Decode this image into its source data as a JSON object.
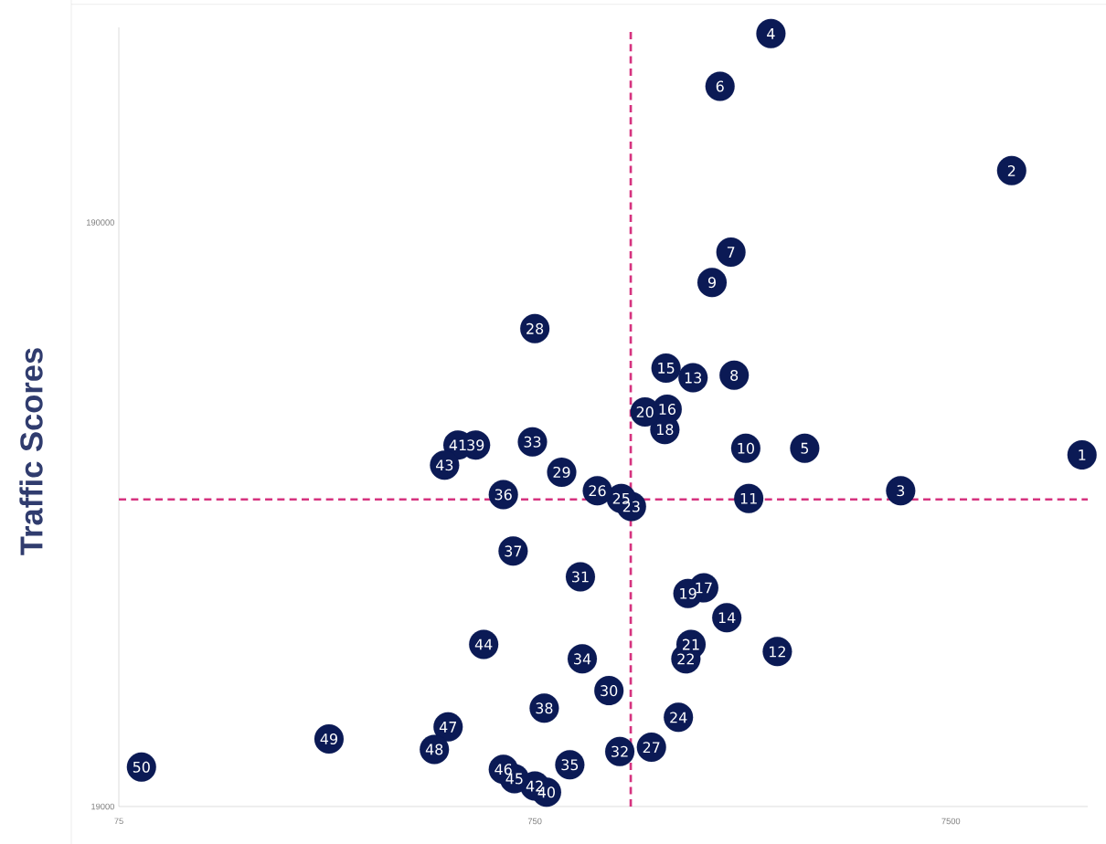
{
  "chart_data": {
    "type": "scatter",
    "ylabel": "Traffic Scores",
    "x": [
      15500,
      10500,
      5680,
      2770,
      3340,
      2090,
      2220,
      2260,
      2000,
      2410,
      2450,
      2870,
      1800,
      2170,
      1550,
      1560,
      1910,
      1540,
      1750,
      1380,
      1780,
      1730,
      1280,
      1660,
      1210,
      1060,
      1430,
      750,
      870,
      1130,
      965,
      1200,
      740,
      975,
      910,
      630,
      665,
      790,
      540,
      800,
      490,
      750,
      455,
      565,
      670,
      630,
      464,
      430,
      240,
      85
    ],
    "values": [
      76000,
      233000,
      66000,
      400000,
      78000,
      325000,
      169000,
      104000,
      150000,
      78000,
      64000,
      35000,
      103000,
      40000,
      107000,
      91000,
      45000,
      84000,
      44000,
      90000,
      36000,
      34000,
      62000,
      27000,
      64000,
      66000,
      24000,
      125000,
      71000,
      30000,
      47000,
      23600,
      80000,
      34000,
      22400,
      65000,
      52000,
      28000,
      79000,
      20100,
      79000,
      20600,
      73000,
      36000,
      21200,
      22000,
      26000,
      23800,
      24800,
      22200
    ],
    "annotations": [
      {
        "text": "1",
        "x": 15500,
        "y": 76000
      },
      {
        "text": "2",
        "x": 10500,
        "y": 233000
      },
      {
        "text": "3",
        "x": 5680,
        "y": 66000
      },
      {
        "text": "4",
        "x": 2770,
        "y": 400000
      },
      {
        "text": "5",
        "x": 3340,
        "y": 78000
      },
      {
        "text": "6",
        "x": 2090,
        "y": 325000
      },
      {
        "text": "7",
        "x": 2220,
        "y": 169000
      },
      {
        "text": "8",
        "x": 2260,
        "y": 104000
      },
      {
        "text": "9",
        "x": 2000,
        "y": 150000
      },
      {
        "text": "10",
        "x": 2410,
        "y": 78000
      },
      {
        "text": "11",
        "x": 2450,
        "y": 64000
      },
      {
        "text": "12",
        "x": 2870,
        "y": 35000
      },
      {
        "text": "13",
        "x": 1800,
        "y": 103000
      },
      {
        "text": "14",
        "x": 2170,
        "y": 40000
      },
      {
        "text": "15",
        "x": 1550,
        "y": 107000
      },
      {
        "text": "16",
        "x": 1560,
        "y": 91000
      },
      {
        "text": "17",
        "x": 1910,
        "y": 45000
      },
      {
        "text": "18",
        "x": 1540,
        "y": 84000
      },
      {
        "text": "19",
        "x": 1750,
        "y": 44000
      },
      {
        "text": "20",
        "x": 1380,
        "y": 90000
      },
      {
        "text": "21",
        "x": 1780,
        "y": 36000
      },
      {
        "text": "22",
        "x": 1730,
        "y": 34000
      },
      {
        "text": "23",
        "x": 1280,
        "y": 62000
      },
      {
        "text": "24",
        "x": 1660,
        "y": 27000
      },
      {
        "text": "25",
        "x": 1210,
        "y": 64000
      },
      {
        "text": "26",
        "x": 1060,
        "y": 66000
      },
      {
        "text": "27",
        "x": 1430,
        "y": 24000
      },
      {
        "text": "28",
        "x": 750,
        "y": 125000
      },
      {
        "text": "29",
        "x": 870,
        "y": 71000
      },
      {
        "text": "30",
        "x": 1130,
        "y": 30000
      },
      {
        "text": "31",
        "x": 965,
        "y": 47000
      },
      {
        "text": "32",
        "x": 1200,
        "y": 23600
      },
      {
        "text": "33",
        "x": 740,
        "y": 80000
      },
      {
        "text": "34",
        "x": 975,
        "y": 34000
      },
      {
        "text": "35",
        "x": 910,
        "y": 22400
      },
      {
        "text": "36",
        "x": 630,
        "y": 65000
      },
      {
        "text": "37",
        "x": 665,
        "y": 52000
      },
      {
        "text": "38",
        "x": 790,
        "y": 28000
      },
      {
        "text": "39",
        "x": 540,
        "y": 79000
      },
      {
        "text": "40",
        "x": 800,
        "y": 20100
      },
      {
        "text": "41",
        "x": 490,
        "y": 79000
      },
      {
        "text": "42",
        "x": 750,
        "y": 20600
      },
      {
        "text": "43",
        "x": 455,
        "y": 73000
      },
      {
        "text": "44",
        "x": 565,
        "y": 36000
      },
      {
        "text": "45",
        "x": 670,
        "y": 21200
      },
      {
        "text": "46",
        "x": 630,
        "y": 22000
      },
      {
        "text": "47",
        "x": 464,
        "y": 26000
      },
      {
        "text": "48",
        "x": 430,
        "y": 23800
      },
      {
        "text": "49",
        "x": 240,
        "y": 24800
      },
      {
        "text": "50",
        "x": 85,
        "y": 22200
      }
    ],
    "color": "#0b1a55",
    "marker": "circle",
    "log": "xy",
    "xlim": [
      75,
      16000
    ],
    "ylim": [
      19000,
      410000
    ],
    "xticks": [
      75,
      750,
      7500
    ],
    "yticks": [
      19000,
      190000
    ],
    "ref_lines": [
      {
        "axis": "x",
        "value": 1275,
        "color": "#d6337f",
        "line_style": "dashed"
      },
      {
        "axis": "y",
        "value": 63760,
        "color": "#d6337f",
        "line_style": "dashed"
      }
    ]
  }
}
